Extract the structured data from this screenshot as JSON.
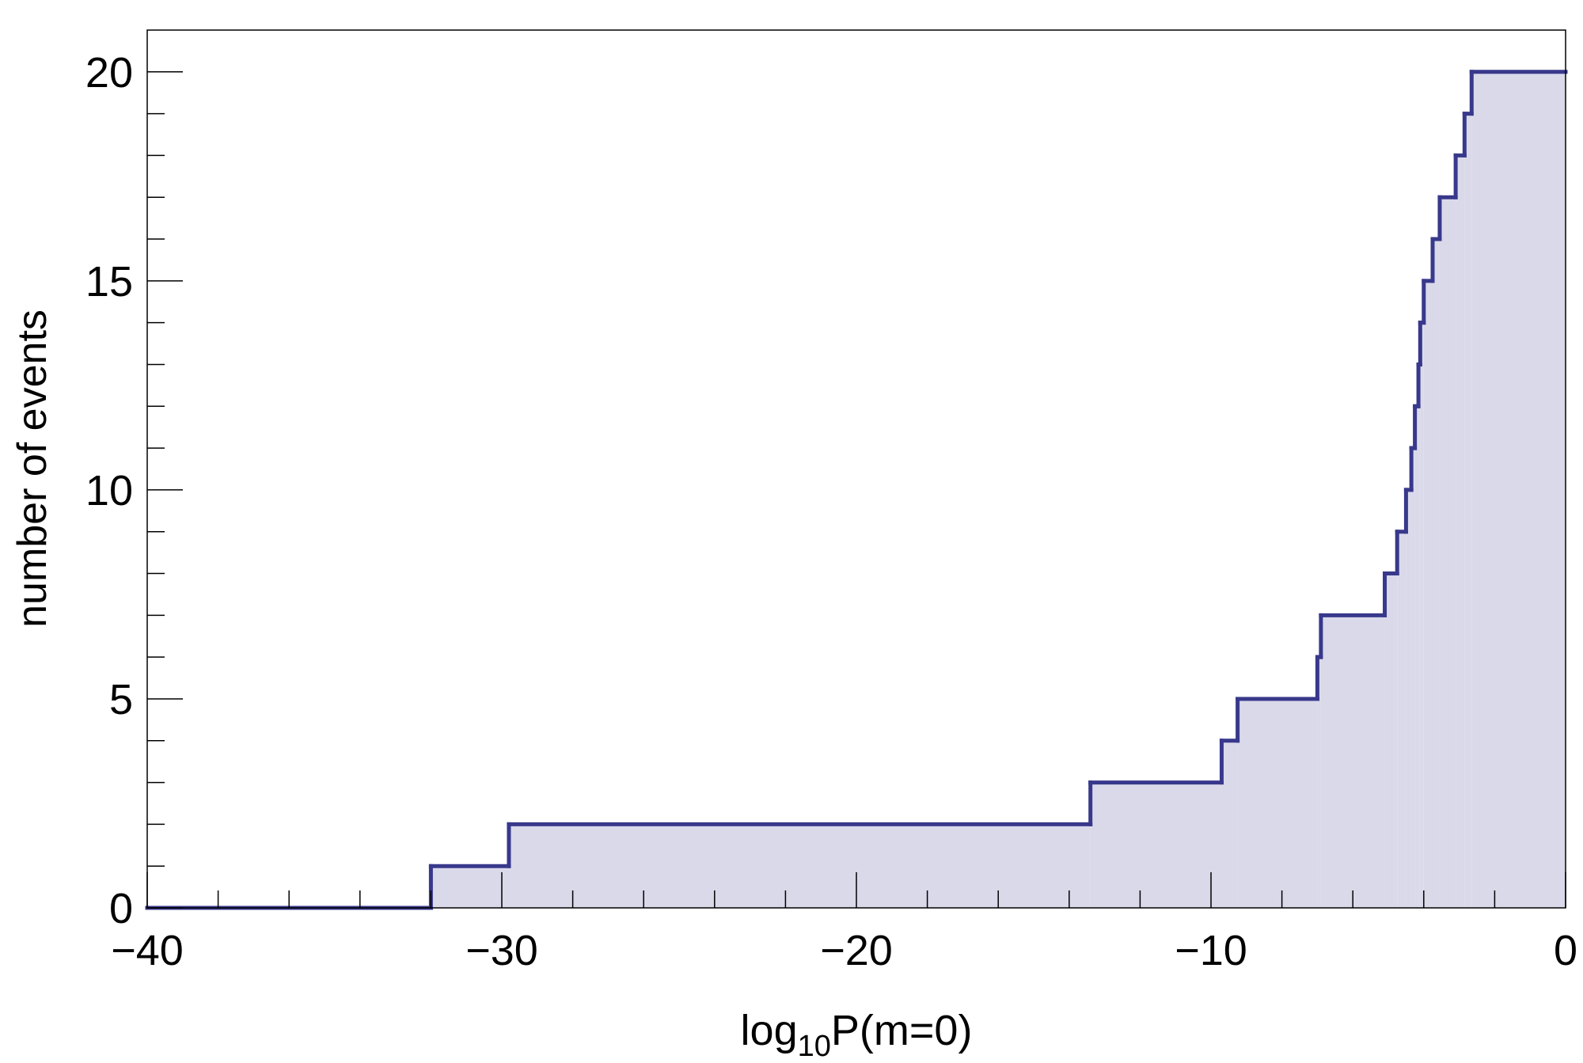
{
  "chart_data": {
    "type": "line",
    "step": "post",
    "xlabel": [
      "log",
      "10",
      "P(m=0)"
    ],
    "ylabel": "number of events",
    "x": [
      -40,
      -32,
      -29.8,
      -13.4,
      -9.7,
      -9.25,
      -7.0,
      -6.9,
      -5.1,
      -4.75,
      -4.5,
      -4.35,
      -4.25,
      -4.15,
      -4.1,
      -4.0,
      -3.75,
      -3.55,
      -3.1,
      -2.85,
      -2.65
    ],
    "values": [
      0,
      1,
      2,
      3,
      4,
      5,
      6,
      7,
      8,
      9,
      10,
      11,
      12,
      13,
      14,
      15,
      16,
      17,
      18,
      19,
      20
    ],
    "color": "#38388c",
    "fill": "#d9d9ea",
    "xlim": [
      -40,
      0
    ],
    "ylim": [
      0,
      21
    ],
    "xticks": [
      {
        "value": -40,
        "label": "−40"
      },
      {
        "value": -30,
        "label": "−30"
      },
      {
        "value": -20,
        "label": "−20"
      },
      {
        "value": -10,
        "label": "−10"
      },
      0
    ],
    "xminorticks": [
      -38,
      -36,
      -34,
      -32,
      -28,
      -26,
      -24,
      -22,
      -18,
      -16,
      -14,
      -12,
      -8,
      -6,
      -4,
      -2
    ],
    "yticks": [
      0,
      5,
      10,
      15,
      20
    ],
    "yminorticks": [
      1,
      2,
      3,
      4,
      6,
      7,
      8,
      9,
      11,
      12,
      13,
      14,
      16,
      17,
      18,
      19
    ]
  }
}
